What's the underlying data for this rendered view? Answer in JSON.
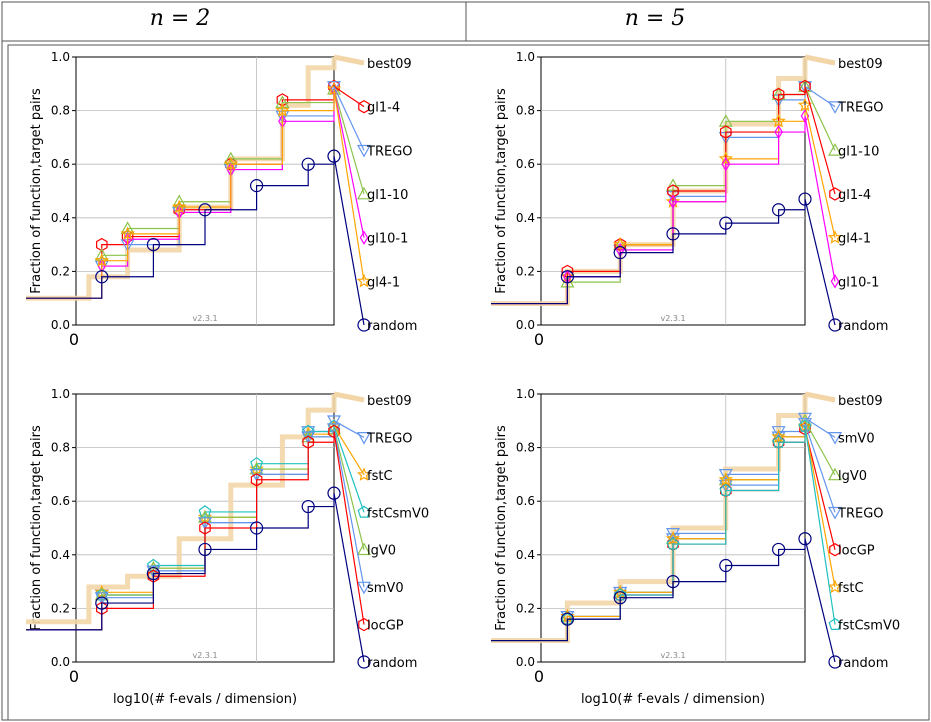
{
  "header": {
    "col1": "n = 2",
    "col2": "n = 5"
  },
  "common": {
    "xlabel": "log10(# f-evals / dimension)",
    "ylabel": "Fraction of function,target pairs",
    "version": "v2.3.1",
    "xtick": "0",
    "yticks": [
      "0.0",
      "0.2",
      "0.4",
      "0.6",
      "0.8",
      "1.0"
    ]
  },
  "colors": {
    "best09": "#f2d6a8",
    "random": "#00007f",
    "gl1-4": "#ff0000",
    "TREGO": "#6495ed",
    "gl1-10": "#8bc34a",
    "gl10-1": "#ff00ff",
    "gl4-1": "#ffa500",
    "fstC": "#ffa500",
    "fstCsmV0": "#20c0c0",
    "lgV0": "#8bc34a",
    "smV0": "#6495ed",
    "locGP": "#ff0000"
  },
  "chart_data": [
    {
      "type": "line",
      "xlabel": "log10(# f-evals / dimension)",
      "ylabel": "Fraction of function,target pairs",
      "ylim": [
        0,
        1
      ],
      "grid": true,
      "xticks": [
        "0"
      ],
      "legend": [
        "best09",
        "gl1-4",
        "TREGO",
        "gl1-10",
        "gl10-1",
        "gl4-1",
        "random"
      ],
      "series": [
        {
          "name": "best09",
          "x": [
            0,
            0.05,
            0.2,
            0.4,
            0.6,
            0.8,
            0.9,
            1.0
          ],
          "y": [
            0.1,
            0.18,
            0.28,
            0.44,
            0.62,
            0.82,
            0.96,
            1.0
          ]
        },
        {
          "name": "gl1-4",
          "x": [
            0,
            0.1,
            0.2,
            0.4,
            0.6,
            0.8,
            1.0
          ],
          "y": [
            0.1,
            0.3,
            0.33,
            0.43,
            0.6,
            0.84,
            0.89
          ]
        },
        {
          "name": "TREGO",
          "x": [
            0,
            0.1,
            0.2,
            0.4,
            0.6,
            0.8,
            1.0
          ],
          "y": [
            0.1,
            0.22,
            0.3,
            0.42,
            0.58,
            0.78,
            0.89
          ]
        },
        {
          "name": "gl1-10",
          "x": [
            0,
            0.1,
            0.2,
            0.4,
            0.6,
            0.8,
            1.0
          ],
          "y": [
            0.1,
            0.26,
            0.36,
            0.46,
            0.62,
            0.83,
            0.88
          ]
        },
        {
          "name": "gl10-1",
          "x": [
            0,
            0.1,
            0.2,
            0.4,
            0.6,
            0.8,
            1.0
          ],
          "y": [
            0.1,
            0.22,
            0.32,
            0.42,
            0.58,
            0.76,
            0.88
          ]
        },
        {
          "name": "gl4-1",
          "x": [
            0,
            0.1,
            0.2,
            0.4,
            0.6,
            0.8,
            1.0
          ],
          "y": [
            0.1,
            0.24,
            0.34,
            0.44,
            0.6,
            0.8,
            0.88
          ]
        },
        {
          "name": "random",
          "x": [
            0,
            0.1,
            0.3,
            0.5,
            0.7,
            0.9,
            1.0
          ],
          "y": [
            0.1,
            0.18,
            0.3,
            0.43,
            0.52,
            0.6,
            0.63
          ]
        }
      ]
    },
    {
      "type": "line",
      "xlabel": "log10(# f-evals / dimension)",
      "ylabel": "Fraction of function,target pairs",
      "ylim": [
        0,
        1
      ],
      "grid": true,
      "xticks": [
        "0"
      ],
      "legend": [
        "best09",
        "TREGO",
        "gl1-10",
        "gl1-4",
        "gl4-1",
        "gl10-1",
        "random"
      ],
      "series": [
        {
          "name": "best09",
          "x": [
            0,
            0.1,
            0.3,
            0.5,
            0.7,
            0.9,
            1.0
          ],
          "y": [
            0.08,
            0.2,
            0.3,
            0.5,
            0.75,
            0.92,
            1.0
          ]
        },
        {
          "name": "TREGO",
          "x": [
            0,
            0.1,
            0.3,
            0.5,
            0.7,
            0.9,
            1.0
          ],
          "y": [
            0.08,
            0.18,
            0.28,
            0.48,
            0.7,
            0.84,
            0.89
          ]
        },
        {
          "name": "gl1-10",
          "x": [
            0,
            0.1,
            0.3,
            0.5,
            0.7,
            0.9,
            1.0
          ],
          "y": [
            0.08,
            0.16,
            0.3,
            0.52,
            0.76,
            0.86,
            0.89
          ]
        },
        {
          "name": "gl1-4",
          "x": [
            0,
            0.1,
            0.3,
            0.5,
            0.7,
            0.9,
            1.0
          ],
          "y": [
            0.08,
            0.2,
            0.3,
            0.5,
            0.72,
            0.86,
            0.89
          ]
        },
        {
          "name": "gl4-1",
          "x": [
            0,
            0.1,
            0.3,
            0.5,
            0.7,
            0.9,
            1.0
          ],
          "y": [
            0.08,
            0.18,
            0.3,
            0.46,
            0.62,
            0.76,
            0.82
          ]
        },
        {
          "name": "gl10-1",
          "x": [
            0,
            0.1,
            0.3,
            0.5,
            0.7,
            0.9,
            1.0
          ],
          "y": [
            0.08,
            0.18,
            0.28,
            0.46,
            0.6,
            0.72,
            0.78
          ]
        },
        {
          "name": "random",
          "x": [
            0,
            0.1,
            0.3,
            0.5,
            0.7,
            0.9,
            1.0
          ],
          "y": [
            0.08,
            0.18,
            0.27,
            0.34,
            0.38,
            0.43,
            0.47
          ]
        }
      ]
    },
    {
      "type": "line",
      "xlabel": "log10(# f-evals / dimension)",
      "ylabel": "Fraction of function,target pairs",
      "ylim": [
        0,
        1
      ],
      "grid": true,
      "xticks": [
        "0"
      ],
      "legend": [
        "best09",
        "TREGO",
        "fstC",
        "fstCsmV0",
        "lgV0",
        "smV0",
        "locGP",
        "random"
      ],
      "series": [
        {
          "name": "best09",
          "x": [
            0,
            0.05,
            0.2,
            0.4,
            0.6,
            0.8,
            0.9,
            1.0
          ],
          "y": [
            0.15,
            0.28,
            0.32,
            0.46,
            0.66,
            0.84,
            0.94,
            1.0
          ]
        },
        {
          "name": "TREGO",
          "x": [
            0,
            0.1,
            0.3,
            0.5,
            0.7,
            0.9,
            1.0
          ],
          "y": [
            0.12,
            0.25,
            0.34,
            0.52,
            0.7,
            0.86,
            0.9
          ]
        },
        {
          "name": "fstC",
          "x": [
            0,
            0.1,
            0.3,
            0.5,
            0.7,
            0.9,
            1.0
          ],
          "y": [
            0.12,
            0.26,
            0.35,
            0.54,
            0.72,
            0.85,
            0.88
          ]
        },
        {
          "name": "fstCsmV0",
          "x": [
            0,
            0.1,
            0.3,
            0.5,
            0.7,
            0.9,
            1.0
          ],
          "y": [
            0.12,
            0.25,
            0.36,
            0.56,
            0.74,
            0.86,
            0.88
          ]
        },
        {
          "name": "lgV0",
          "x": [
            0,
            0.1,
            0.3,
            0.5,
            0.7,
            0.9,
            1.0
          ],
          "y": [
            0.12,
            0.25,
            0.35,
            0.54,
            0.72,
            0.84,
            0.87
          ]
        },
        {
          "name": "smV0",
          "x": [
            0,
            0.1,
            0.3,
            0.5,
            0.7,
            0.9,
            1.0
          ],
          "y": [
            0.12,
            0.24,
            0.34,
            0.52,
            0.7,
            0.84,
            0.87
          ]
        },
        {
          "name": "locGP",
          "x": [
            0,
            0.1,
            0.3,
            0.5,
            0.7,
            0.9,
            1.0
          ],
          "y": [
            0.12,
            0.2,
            0.32,
            0.5,
            0.68,
            0.82,
            0.86
          ]
        },
        {
          "name": "random",
          "x": [
            0,
            0.1,
            0.3,
            0.5,
            0.7,
            0.9,
            1.0
          ],
          "y": [
            0.12,
            0.22,
            0.33,
            0.42,
            0.5,
            0.58,
            0.63
          ]
        }
      ]
    },
    {
      "type": "line",
      "xlabel": "log10(# f-evals / dimension)",
      "ylabel": "Fraction of function,target pairs",
      "ylim": [
        0,
        1
      ],
      "grid": true,
      "xticks": [
        "0"
      ],
      "legend": [
        "best09",
        "smV0",
        "lgV0",
        "TREGO",
        "locGP",
        "fstC",
        "fstCsmV0",
        "random"
      ],
      "series": [
        {
          "name": "best09",
          "x": [
            0,
            0.1,
            0.3,
            0.5,
            0.7,
            0.9,
            1.0
          ],
          "y": [
            0.08,
            0.22,
            0.3,
            0.5,
            0.72,
            0.92,
            1.0
          ]
        },
        {
          "name": "smV0",
          "x": [
            0,
            0.1,
            0.3,
            0.5,
            0.7,
            0.9,
            1.0
          ],
          "y": [
            0.08,
            0.17,
            0.26,
            0.48,
            0.7,
            0.86,
            0.91
          ]
        },
        {
          "name": "lgV0",
          "x": [
            0,
            0.1,
            0.3,
            0.5,
            0.7,
            0.9,
            1.0
          ],
          "y": [
            0.08,
            0.17,
            0.26,
            0.46,
            0.68,
            0.84,
            0.9
          ]
        },
        {
          "name": "TREGO",
          "x": [
            0,
            0.1,
            0.3,
            0.5,
            0.7,
            0.9,
            1.0
          ],
          "y": [
            0.08,
            0.17,
            0.26,
            0.46,
            0.66,
            0.84,
            0.89
          ]
        },
        {
          "name": "locGP",
          "x": [
            0,
            0.1,
            0.3,
            0.5,
            0.7,
            0.9,
            1.0
          ],
          "y": [
            0.08,
            0.16,
            0.25,
            0.44,
            0.64,
            0.82,
            0.87
          ]
        },
        {
          "name": "fstC",
          "x": [
            0,
            0.1,
            0.3,
            0.5,
            0.7,
            0.9,
            1.0
          ],
          "y": [
            0.08,
            0.17,
            0.26,
            0.46,
            0.68,
            0.84,
            0.88
          ]
        },
        {
          "name": "fstCsmV0",
          "x": [
            0,
            0.1,
            0.3,
            0.5,
            0.7,
            0.9,
            1.0
          ],
          "y": [
            0.08,
            0.16,
            0.25,
            0.44,
            0.64,
            0.82,
            0.88
          ]
        },
        {
          "name": "random",
          "x": [
            0,
            0.1,
            0.3,
            0.5,
            0.7,
            0.9,
            1.0
          ],
          "y": [
            0.08,
            0.16,
            0.24,
            0.3,
            0.36,
            0.42,
            0.46
          ]
        }
      ]
    }
  ]
}
